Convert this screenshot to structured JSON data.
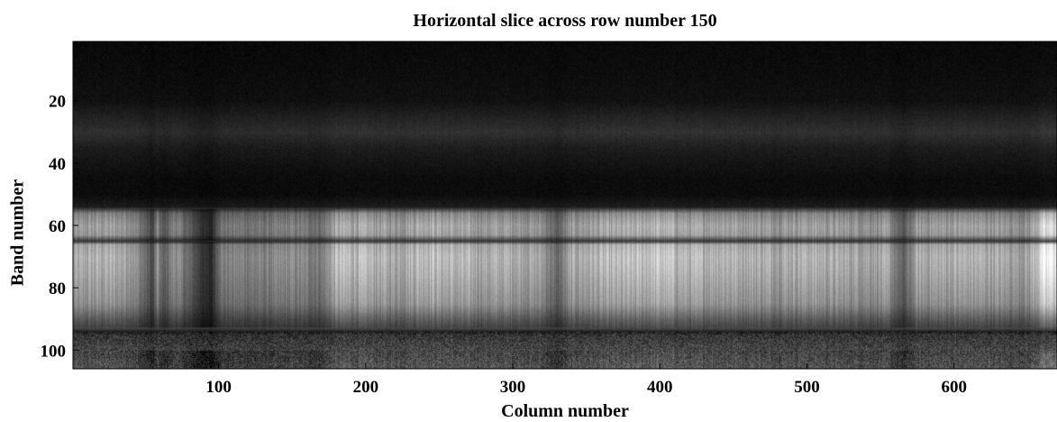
{
  "chart_data": {
    "type": "heatmap",
    "title": "Horizontal slice across row number 150",
    "xlabel": "Column number",
    "ylabel": "Band number",
    "xlim": [
      1,
      670
    ],
    "ylim": [
      1,
      106
    ],
    "y_inverted": true,
    "colormap": "gray",
    "x_ticks": [
      100,
      200,
      300,
      400,
      500,
      600
    ],
    "y_ticks": [
      20,
      40,
      60,
      80,
      100
    ],
    "band_profile": {
      "bands": [
        1,
        10,
        20,
        25,
        30,
        35,
        40,
        45,
        50,
        54,
        56,
        60,
        63,
        65,
        66,
        70,
        75,
        80,
        85,
        88,
        90,
        93,
        94,
        95,
        100,
        106
      ],
      "intensity": [
        0.04,
        0.05,
        0.07,
        0.14,
        0.2,
        0.12,
        0.08,
        0.05,
        0.05,
        0.12,
        0.58,
        0.72,
        0.68,
        0.22,
        0.74,
        0.8,
        0.76,
        0.7,
        0.64,
        0.5,
        0.4,
        0.28,
        0.12,
        0.22,
        0.3,
        0.38
      ]
    },
    "column_profile": {
      "columns": [
        1,
        20,
        40,
        50,
        55,
        58,
        62,
        70,
        80,
        90,
        95,
        100,
        110,
        130,
        150,
        170,
        180,
        200,
        220,
        240,
        260,
        280,
        300,
        320,
        330,
        340,
        360,
        380,
        400,
        420,
        440,
        460,
        480,
        500,
        520,
        540,
        555,
        565,
        575,
        590,
        610,
        630,
        650,
        660,
        670
      ],
      "gain": [
        0.82,
        0.88,
        0.84,
        0.55,
        0.35,
        0.75,
        0.45,
        0.75,
        0.5,
        0.25,
        0.2,
        0.62,
        0.66,
        0.64,
        0.7,
        0.62,
        0.95,
        0.92,
        0.85,
        0.98,
        0.9,
        0.86,
        0.88,
        0.8,
        0.5,
        0.85,
        0.9,
        0.93,
        1.0,
        0.9,
        0.92,
        0.88,
        0.86,
        0.9,
        0.85,
        0.84,
        0.82,
        0.45,
        0.85,
        0.86,
        0.88,
        0.85,
        0.8,
        1.15,
        1.25
      ]
    }
  }
}
